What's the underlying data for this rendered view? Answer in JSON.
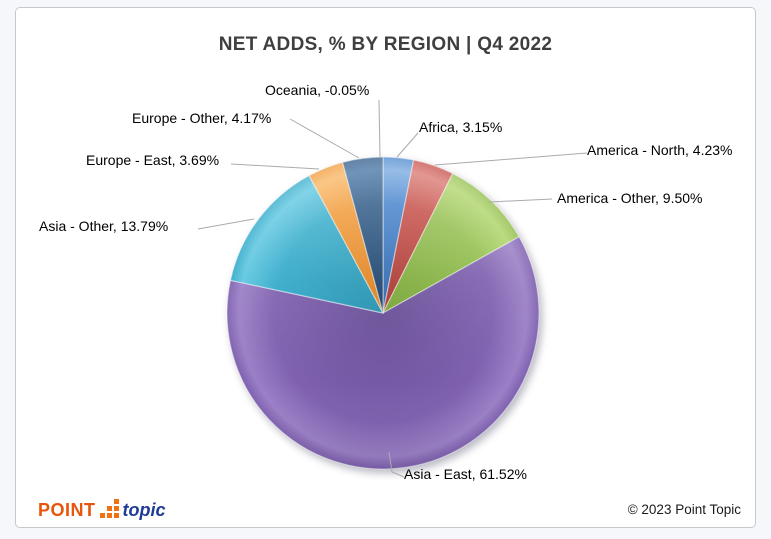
{
  "page": {
    "background_color": "#f5f7fa",
    "card_background": "#ffffff",
    "card_border_color": "#c6c8cb"
  },
  "chart_data": {
    "type": "pie",
    "title": "NET ADDS, % BY REGION | Q4 2022",
    "start_angle_deg": 0,
    "direction": "clockwise",
    "legend_position": "none",
    "data_labels": "outside-with-leader-lines",
    "points": [
      {
        "key": "africa",
        "label": "Africa",
        "value": 3.15,
        "display": "Africa, 3.15%",
        "color": "#3a7bc8",
        "color_light": "#6fa3de",
        "color_dark": "#2d64a8"
      },
      {
        "key": "america-north",
        "label": "America - North",
        "value": 4.23,
        "display": "America - North, 4.23%",
        "color": "#c2443d",
        "color_light": "#d8716b",
        "color_dark": "#a33630"
      },
      {
        "key": "america-other",
        "label": "America - Other",
        "value": 9.5,
        "display": "America - Other, 9.50%",
        "color": "#8fbc49",
        "color_light": "#aed468",
        "color_dark": "#76a335"
      },
      {
        "key": "asia-east",
        "label": "Asia - East",
        "value": 61.52,
        "display": "Asia - East, 61.52%",
        "color": "#7e60af",
        "color_light": "#9a7fc6",
        "color_dark": "#684e96"
      },
      {
        "key": "asia-other",
        "label": "Asia - Other",
        "value": 13.79,
        "display": "Asia - Other, 13.79%",
        "color": "#30a9c9",
        "color_light": "#5cc6e0",
        "color_dark": "#2590ad"
      },
      {
        "key": "europe-east",
        "label": "Europe - East",
        "value": 3.69,
        "display": "Europe - East, 3.69%",
        "color": "#f0942e",
        "color_light": "#f8b35c",
        "color_dark": "#d97e1e"
      },
      {
        "key": "europe-other",
        "label": "Europe - Other",
        "value": 4.17,
        "display": "Europe - Other, 4.17%",
        "color": "#24507f",
        "color_light": "#3a6ba0",
        "color_dark": "#1a3e66"
      },
      {
        "key": "oceania",
        "label": "Oceania",
        "value": -0.05,
        "display": "Oceania, -0.05%",
        "color": "#888888",
        "color_light": "#aaaaaa",
        "color_dark": "#666666"
      }
    ],
    "leader_line_color": "#ababab"
  },
  "footer": {
    "logo": {
      "point_text": "POINT",
      "topic_text": "topic",
      "point_color": "#e8540a",
      "topic_color": "#1e3c96",
      "squares_color": "#f07214"
    },
    "copyright": "© 2023 Point Topic"
  }
}
